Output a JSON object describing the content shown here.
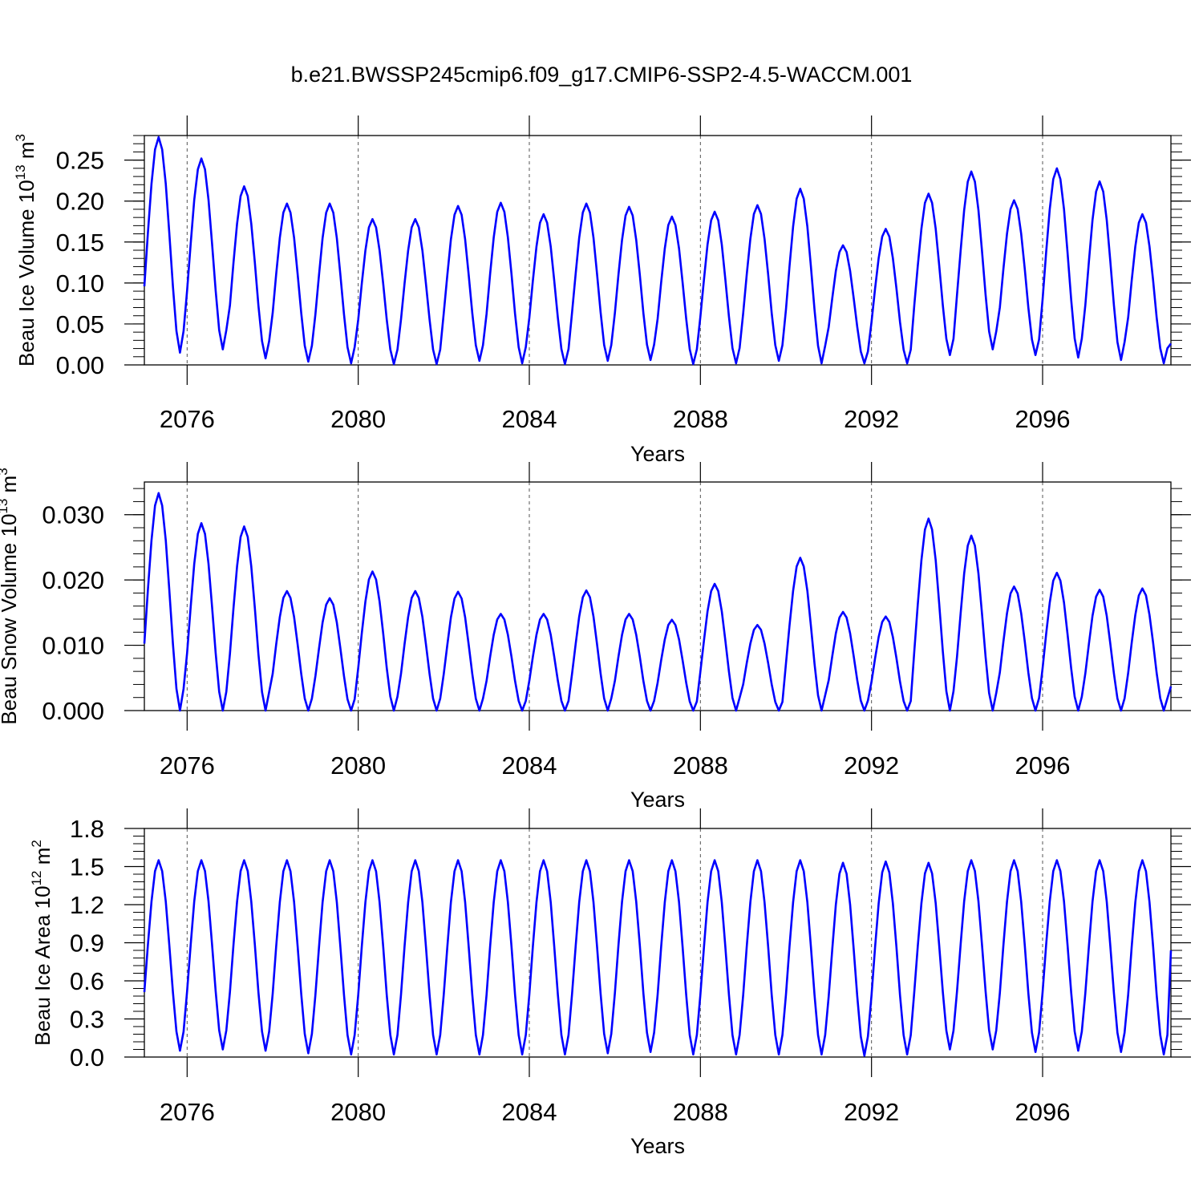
{
  "title": "b.e21.BWSSP245cmip6.f09_g17.CMIP6-SSP2-4.5-WACCM.001",
  "chart_data": [
    {
      "type": "line",
      "ylabel": "Beau Ice Volume",
      "unit_mult": "10",
      "unit_exp": "13",
      "unit_name": "m",
      "unit_pow": "3",
      "xlabel": "Years",
      "xlim": [
        2075.0,
        2099.0
      ],
      "ylim": [
        0.0,
        0.28
      ],
      "yticks": [
        0.0,
        0.05,
        0.1,
        0.15,
        0.2,
        0.25
      ],
      "ytick_labels": [
        "0.00",
        "0.05",
        "0.10",
        "0.15",
        "0.20",
        "0.25"
      ],
      "xticks": [
        2076,
        2080,
        2084,
        2088,
        2092,
        2096
      ],
      "xtick_labels": [
        "2076",
        "2080",
        "2084",
        "2088",
        "2092",
        "2096"
      ],
      "color": "#0000ff",
      "start": 2075.0,
      "peaks": [
        0.278,
        0.252,
        0.218,
        0.197,
        0.197,
        0.178,
        0.178,
        0.194,
        0.198,
        0.184,
        0.197,
        0.193,
        0.181,
        0.187,
        0.195,
        0.215,
        0.146,
        0.166,
        0.209,
        0.236,
        0.201,
        0.24,
        0.224,
        0.184
      ],
      "troughs": [
        0.015,
        0.019,
        0.008,
        0.004,
        0.002,
        0.001,
        0.001,
        0.005,
        0.002,
        0.001,
        0.005,
        0.006,
        0.001,
        0.002,
        0.005,
        0.002,
        0.002,
        0.002,
        0.012,
        0.019,
        0.012,
        0.009,
        0.006,
        0.002
      ],
      "end_value": 0.026
    },
    {
      "type": "line",
      "ylabel": "Beau Snow Volume",
      "unit_mult": "10",
      "unit_exp": "13",
      "unit_name": "m",
      "unit_pow": "3",
      "xlabel": "Years",
      "xlim": [
        2075.0,
        2099.0
      ],
      "ylim": [
        0.0,
        0.035
      ],
      "yticks": [
        0.0,
        0.01,
        0.02,
        0.03
      ],
      "ytick_labels": [
        "0.000",
        "0.010",
        "0.020",
        "0.030"
      ],
      "xticks": [
        2076,
        2080,
        2084,
        2088,
        2092,
        2096
      ],
      "xtick_labels": [
        "2076",
        "2080",
        "2084",
        "2088",
        "2092",
        "2096"
      ],
      "color": "#0000ff",
      "start": 2075.0,
      "peaks": [
        0.0333,
        0.0287,
        0.0282,
        0.0183,
        0.0172,
        0.0213,
        0.0183,
        0.0182,
        0.0148,
        0.0148,
        0.0184,
        0.0148,
        0.0139,
        0.0194,
        0.0131,
        0.0234,
        0.0151,
        0.0144,
        0.0294,
        0.0268,
        0.019,
        0.0211,
        0.0185,
        0.0187
      ],
      "troughs": [
        0.0,
        0.0,
        0.0,
        0.0,
        0.0,
        0.0,
        0.0,
        0.0,
        0.0,
        0.0,
        0.0,
        0.0,
        0.0,
        0.0,
        0.0,
        0.0,
        0.0,
        0.0,
        0.0,
        0.0,
        0.0,
        0.0,
        0.0,
        0.0
      ],
      "end_value": 0.0037
    },
    {
      "type": "line",
      "ylabel": "Beau Ice Area",
      "unit_mult": "10",
      "unit_exp": "12",
      "unit_name": "m",
      "unit_pow": "2",
      "xlabel": "Years",
      "xlim": [
        2075.0,
        2099.0
      ],
      "ylim": [
        0.0,
        1.8
      ],
      "yticks": [
        0.0,
        0.3,
        0.6,
        0.9,
        1.2,
        1.5,
        1.8
      ],
      "ytick_labels": [
        "0.0",
        "0.3",
        "0.6",
        "0.9",
        "1.2",
        "1.5",
        "1.8"
      ],
      "xticks": [
        2076,
        2080,
        2084,
        2088,
        2092,
        2096
      ],
      "xtick_labels": [
        "2076",
        "2080",
        "2084",
        "2088",
        "2092",
        "2096"
      ],
      "color": "#0000ff",
      "start": 2075.0,
      "peaks": [
        1.55,
        1.55,
        1.55,
        1.55,
        1.55,
        1.55,
        1.55,
        1.55,
        1.55,
        1.55,
        1.55,
        1.55,
        1.55,
        1.55,
        1.55,
        1.55,
        1.53,
        1.54,
        1.53,
        1.55,
        1.55,
        1.55,
        1.55,
        1.55
      ],
      "troughs": [
        0.05,
        0.06,
        0.05,
        0.03,
        0.02,
        0.02,
        0.02,
        0.02,
        0.02,
        0.02,
        0.03,
        0.04,
        0.02,
        0.02,
        0.02,
        0.02,
        0.01,
        0.02,
        0.06,
        0.06,
        0.04,
        0.05,
        0.04,
        0.02
      ],
      "end_value": 0.84
    }
  ]
}
